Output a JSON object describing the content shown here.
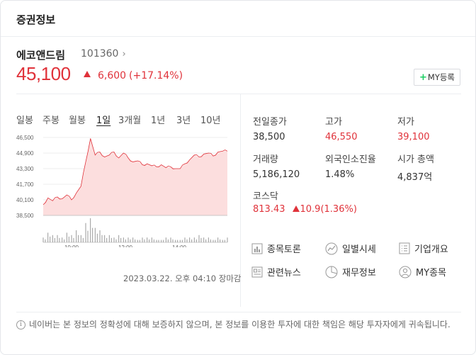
{
  "header": {
    "title": "증권정보"
  },
  "stock": {
    "name": "에코앤드림",
    "code": "101360",
    "price": "45,100",
    "change": "6,600",
    "change_pct": "(+17.14%)",
    "my_button": "MY등록"
  },
  "period_tabs": [
    "일봉",
    "주봉",
    "월봉",
    "1일",
    "3개월",
    "1년",
    "3년",
    "10년"
  ],
  "active_period": "1일",
  "timestamp": "2023.03.22. 오후 04:10 장마감",
  "stats": {
    "prev_close": {
      "label": "전일종가",
      "value": "38,500"
    },
    "high": {
      "label": "고가",
      "value": "46,550"
    },
    "low": {
      "label": "저가",
      "value": "39,100"
    },
    "volume": {
      "label": "거래량",
      "value": "5,186,120"
    },
    "foreign": {
      "label": "외국인소진율",
      "value": "1.48%"
    },
    "market_cap": {
      "label": "시가 총액",
      "value": "4,837억"
    },
    "index": {
      "label": "코스닥",
      "value": "813.43",
      "change": "10.9",
      "change_pct": "(1.36%)"
    }
  },
  "links": [
    {
      "label": "종목토론",
      "icon": "chart-bar-icon"
    },
    {
      "label": "일별시세",
      "icon": "trend-icon"
    },
    {
      "label": "기업개요",
      "icon": "document-icon"
    },
    {
      "label": "관련뉴스",
      "icon": "news-icon"
    },
    {
      "label": "재무정보",
      "icon": "pie-icon"
    },
    {
      "label": "MY종목",
      "icon": "person-icon"
    }
  ],
  "disclaimer": "네이버는 본 정보의 정확성에 대해 보증하지 않으며, 본 정보를 이용한 투자에 대한 책임은 해당 투자자에게 귀속됩니다.",
  "colors": {
    "up": "#e0323a",
    "accent_green": "#19ce60",
    "area_fill": "#fcdede"
  },
  "chart_data": {
    "type": "area",
    "y_ticks": [
      "46,500",
      "44,900",
      "43,300",
      "41,700",
      "40,100",
      "38,500"
    ],
    "x_ticks": [
      "10:00",
      "12:00",
      "14:00"
    ],
    "ylim": [
      38500,
      46500
    ],
    "baseline": 38500,
    "x": [
      "09:00",
      "09:10",
      "09:20",
      "09:30",
      "09:40",
      "09:50",
      "10:00",
      "10:10",
      "10:20",
      "10:30",
      "10:40",
      "10:50",
      "11:00",
      "11:10",
      "11:20",
      "11:30",
      "11:40",
      "11:50",
      "12:00",
      "12:10",
      "12:20",
      "12:30",
      "12:40",
      "12:50",
      "13:00",
      "13:10",
      "13:20",
      "13:30",
      "13:40",
      "13:50",
      "14:00",
      "14:10",
      "14:20",
      "14:30",
      "14:40",
      "14:50",
      "15:00",
      "15:10",
      "15:20",
      "15:30"
    ],
    "values": [
      39600,
      40300,
      40000,
      40400,
      40200,
      40600,
      40100,
      40800,
      41500,
      44000,
      46400,
      44700,
      45000,
      44500,
      44700,
      45000,
      44400,
      44900,
      44400,
      44000,
      44100,
      43700,
      43800,
      43600,
      43500,
      43700,
      43400,
      43500,
      43300,
      43300,
      43800,
      44200,
      44700,
      44500,
      44800,
      44900,
      44600,
      45000,
      45100,
      45100
    ],
    "volume_series": [
      2,
      4,
      3,
      3,
      2,
      4,
      3,
      5,
      3,
      8,
      10,
      6,
      5,
      3,
      3,
      2,
      3,
      2,
      2,
      2,
      1,
      2,
      2,
      2,
      1,
      1,
      2,
      2,
      1,
      1,
      2,
      2,
      2,
      3,
      2,
      2,
      1,
      2,
      1,
      2
    ]
  }
}
